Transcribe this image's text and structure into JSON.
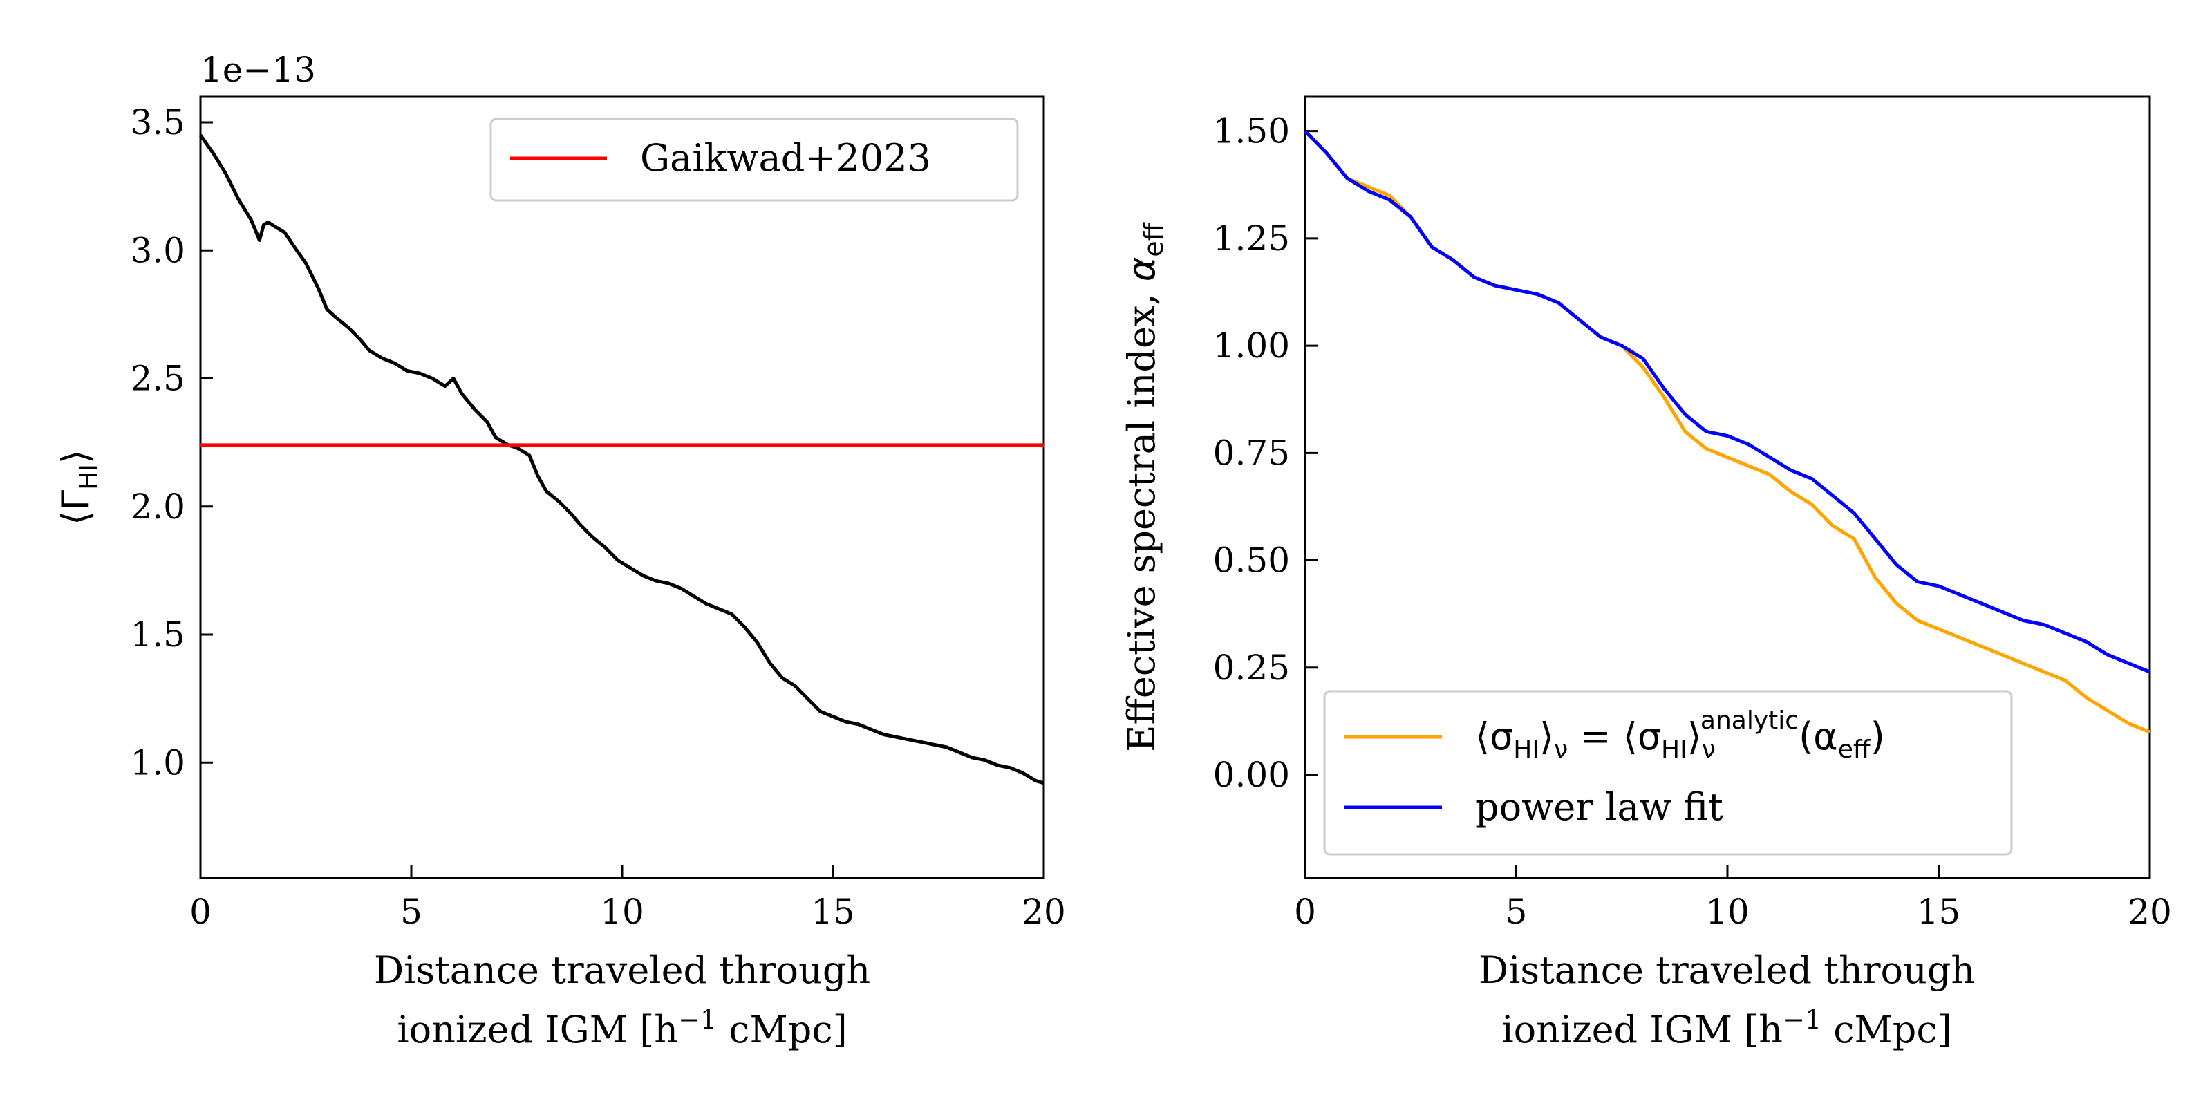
{
  "chart_data": [
    {
      "type": "line",
      "panel": "left",
      "offset_label": "1e−13",
      "xlabel_line1": "Distance traveled through",
      "xlabel_line2_pre": "ionized IGM [h",
      "xlabel_line2_sup": "−1",
      "xlabel_line2_post": " cMpc]",
      "ylabel_main": "⟨Γ",
      "ylabel_sub": "HI",
      "ylabel_close": "⟩",
      "xlim": [
        0,
        20
      ],
      "ylim": [
        0.55,
        3.6
      ],
      "xticks": [
        0,
        5,
        10,
        15,
        20
      ],
      "xtick_labels": [
        "0",
        "5",
        "10",
        "15",
        "20"
      ],
      "yticks": [
        1.0,
        1.5,
        2.0,
        2.5,
        3.0,
        3.5
      ],
      "ytick_labels": [
        "1.0",
        "1.5",
        "2.0",
        "2.5",
        "3.0",
        "3.5"
      ],
      "series": [
        {
          "name": "⟨ΓHI⟩",
          "color": "#000000",
          "x": [
            0,
            0.3,
            0.6,
            0.9,
            1.2,
            1.4,
            1.5,
            1.6,
            2.0,
            2.2,
            2.5,
            2.8,
            3.0,
            3.2,
            3.5,
            3.8,
            4.0,
            4.3,
            4.6,
            4.9,
            5.2,
            5.5,
            5.8,
            6.0,
            6.2,
            6.5,
            6.8,
            7.0,
            7.3,
            7.5,
            7.8,
            8.0,
            8.2,
            8.5,
            8.8,
            9.0,
            9.3,
            9.6,
            9.9,
            10.2,
            10.5,
            10.8,
            11.1,
            11.4,
            11.7,
            12.0,
            12.3,
            12.6,
            12.9,
            13.2,
            13.5,
            13.8,
            14.1,
            14.4,
            14.7,
            15.0,
            15.3,
            15.6,
            15.9,
            16.2,
            16.5,
            16.8,
            17.1,
            17.4,
            17.7,
            18.0,
            18.3,
            18.6,
            18.9,
            19.2,
            19.5,
            19.8,
            20.0
          ],
          "values": [
            3.45,
            3.38,
            3.3,
            3.2,
            3.12,
            3.04,
            3.1,
            3.11,
            3.07,
            3.02,
            2.95,
            2.85,
            2.77,
            2.74,
            2.7,
            2.65,
            2.61,
            2.58,
            2.56,
            2.53,
            2.52,
            2.5,
            2.47,
            2.5,
            2.44,
            2.38,
            2.33,
            2.27,
            2.24,
            2.23,
            2.2,
            2.12,
            2.06,
            2.02,
            1.97,
            1.93,
            1.88,
            1.84,
            1.79,
            1.76,
            1.73,
            1.71,
            1.7,
            1.68,
            1.65,
            1.62,
            1.6,
            1.58,
            1.53,
            1.47,
            1.39,
            1.33,
            1.3,
            1.25,
            1.2,
            1.18,
            1.16,
            1.15,
            1.13,
            1.11,
            1.1,
            1.09,
            1.08,
            1.07,
            1.06,
            1.04,
            1.02,
            1.01,
            0.99,
            0.98,
            0.96,
            0.93,
            0.92
          ]
        }
      ],
      "hline": {
        "label": "Gaikwad+2023",
        "y": 2.24,
        "color": "#ff0000"
      },
      "legend_position": "upper right"
    },
    {
      "type": "line",
      "panel": "right",
      "xlabel_line1": "Distance traveled through",
      "xlabel_line2_pre": "ionized IGM [h",
      "xlabel_line2_sup": "−1",
      "xlabel_line2_post": " cMpc]",
      "ylabel_text": "Effective spectral index, ",
      "ylabel_alpha": "α",
      "ylabel_sub": "eff",
      "xlim": [
        0,
        20
      ],
      "ylim": [
        -0.24,
        1.58
      ],
      "xticks": [
        0,
        5,
        10,
        15,
        20
      ],
      "xtick_labels": [
        "0",
        "5",
        "10",
        "15",
        "20"
      ],
      "yticks": [
        0.0,
        0.25,
        0.5,
        0.75,
        1.0,
        1.25,
        1.5
      ],
      "ytick_labels": [
        "0.00",
        "0.25",
        "0.50",
        "0.75",
        "1.00",
        "1.25",
        "1.50"
      ],
      "series": [
        {
          "name": "⟨σHI⟩ν = ⟨σHI⟩ν^analytic(αeff)",
          "color": "#ffa500",
          "x": [
            0,
            0.5,
            1.0,
            1.5,
            2.0,
            2.5,
            3.0,
            3.5,
            4.0,
            4.5,
            5.0,
            5.5,
            6.0,
            6.5,
            7.0,
            7.5,
            8.0,
            8.5,
            9.0,
            9.5,
            10.0,
            10.5,
            11.0,
            11.5,
            12.0,
            12.5,
            13.0,
            13.5,
            14.0,
            14.5,
            15.0,
            15.5,
            16.0,
            16.5,
            17.0,
            17.5,
            18.0,
            18.5,
            19.0,
            19.5,
            20.0
          ],
          "values": [
            1.5,
            1.45,
            1.39,
            1.37,
            1.35,
            1.3,
            1.23,
            1.2,
            1.16,
            1.14,
            1.13,
            1.12,
            1.1,
            1.06,
            1.02,
            1.0,
            0.95,
            0.88,
            0.8,
            0.76,
            0.74,
            0.72,
            0.7,
            0.66,
            0.63,
            0.58,
            0.55,
            0.46,
            0.4,
            0.36,
            0.34,
            0.32,
            0.3,
            0.28,
            0.26,
            0.24,
            0.22,
            0.18,
            0.15,
            0.12,
            0.1
          ]
        },
        {
          "name": "power law fit",
          "color": "#0000ff",
          "x": [
            0,
            0.5,
            1.0,
            1.5,
            2.0,
            2.5,
            3.0,
            3.5,
            4.0,
            4.5,
            5.0,
            5.5,
            6.0,
            6.5,
            7.0,
            7.5,
            8.0,
            8.5,
            9.0,
            9.5,
            10.0,
            10.5,
            11.0,
            11.5,
            12.0,
            12.5,
            13.0,
            13.5,
            14.0,
            14.5,
            15.0,
            15.5,
            16.0,
            16.5,
            17.0,
            17.5,
            18.0,
            18.5,
            19.0,
            19.5,
            20.0
          ],
          "values": [
            1.5,
            1.45,
            1.39,
            1.36,
            1.34,
            1.3,
            1.23,
            1.2,
            1.16,
            1.14,
            1.13,
            1.12,
            1.1,
            1.06,
            1.02,
            1.0,
            0.97,
            0.9,
            0.84,
            0.8,
            0.79,
            0.77,
            0.74,
            0.71,
            0.69,
            0.65,
            0.61,
            0.55,
            0.49,
            0.45,
            0.44,
            0.42,
            0.4,
            0.38,
            0.36,
            0.35,
            0.33,
            0.31,
            0.28,
            0.26,
            0.24
          ]
        }
      ],
      "legend": {
        "orange_lhs": "⟨σ",
        "sub": "HI",
        "close": "⟩",
        "nu": "ν",
        "eq": " = ",
        "analytic": "analytic",
        "paren_open": "(α",
        "eff": "eff",
        "paren_close": ")",
        "blue_label": "power law fit"
      },
      "legend_position": "lower left"
    }
  ]
}
